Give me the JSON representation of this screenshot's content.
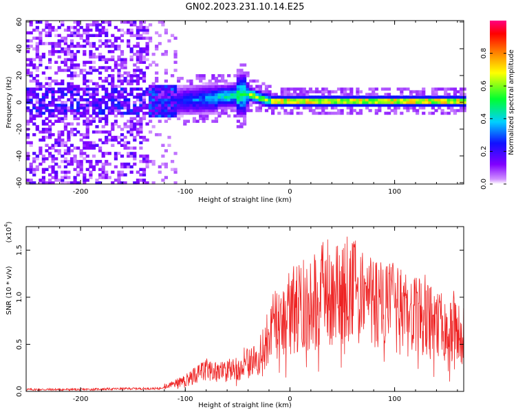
{
  "title": "GN02.2023.231.10.14.E25",
  "chart_data": [
    {
      "type": "heatmap",
      "title": "GN02.2023.231.10.14.E25",
      "xlabel": "Height of straight line (km)",
      "ylabel": "Frequency (Hz)",
      "xlim": [
        -252,
        166
      ],
      "ylim": [
        -61,
        61
      ],
      "x_ticks": [
        "-200",
        "-100",
        "0",
        "100"
      ],
      "y_ticks": [
        "-60",
        "-40",
        "-20",
        "0",
        "20",
        "40",
        "60"
      ],
      "colorbar": {
        "label": "Normalized spectral amplitude",
        "range": [
          0.0,
          1.0
        ],
        "ticks": [
          "0.0",
          "0.2",
          "0.4",
          "0.6",
          "0.8"
        ],
        "colors": [
          "#ffffff",
          "#c060ff",
          "#6000e0",
          "#0000ff",
          "#00e0ff",
          "#00ff40",
          "#ffff00",
          "#ff8000",
          "#ff0000",
          "#ff0080"
        ]
      },
      "regions": [
        {
          "x": [
            -252,
            -135
          ],
          "amplitude": 0.1,
          "pattern": "broadband noise"
        },
        {
          "x": [
            -135,
            -70
          ],
          "freq_center": 0,
          "amplitude": 0.35,
          "pattern": "narrowing band, slight upward drift"
        },
        {
          "x": [
            -70,
            -40
          ],
          "freq_center": 5,
          "amplitude": 0.6,
          "pattern": "peak near 20 Hz at -45 km"
        },
        {
          "x": [
            -40,
            166
          ],
          "freq_center": 0,
          "amplitude": 0.95,
          "pattern": "strong narrow line near 0 Hz"
        }
      ]
    },
    {
      "type": "line",
      "xlabel": "Height of straight line (km)",
      "ylabel": "SNR (10 * v/v)",
      "y_exponent": "(x10",
      "y_exponent_power": "4",
      "xlim": [
        -252,
        166
      ],
      "ylim": [
        0,
        1.75
      ],
      "x_ticks": [
        "-200",
        "-100",
        "0",
        "100"
      ],
      "y_ticks": [
        "0.0",
        "0.5",
        "1.0",
        "1.5"
      ],
      "color": "#ee2222",
      "x": [
        -252,
        -200,
        -150,
        -125,
        -120,
        -110,
        -100,
        -90,
        -80,
        -70,
        -60,
        -50,
        -40,
        -30,
        -25,
        -20,
        -15,
        -10,
        -5,
        0,
        10,
        20,
        30,
        35,
        40,
        50,
        55,
        60,
        70,
        80,
        90,
        100,
        110,
        120,
        130,
        140,
        150,
        160,
        166
      ],
      "y": [
        0.02,
        0.02,
        0.03,
        0.03,
        0.05,
        0.08,
        0.12,
        0.18,
        0.22,
        0.2,
        0.22,
        0.25,
        0.3,
        0.35,
        0.45,
        0.6,
        0.7,
        0.75,
        0.8,
        0.85,
        0.9,
        0.95,
        1.0,
        1.1,
        1.05,
        1.0,
        1.1,
        1.05,
        1.0,
        0.95,
        0.9,
        0.88,
        0.82,
        0.78,
        0.75,
        0.7,
        0.68,
        0.62,
        0.6
      ]
    }
  ]
}
